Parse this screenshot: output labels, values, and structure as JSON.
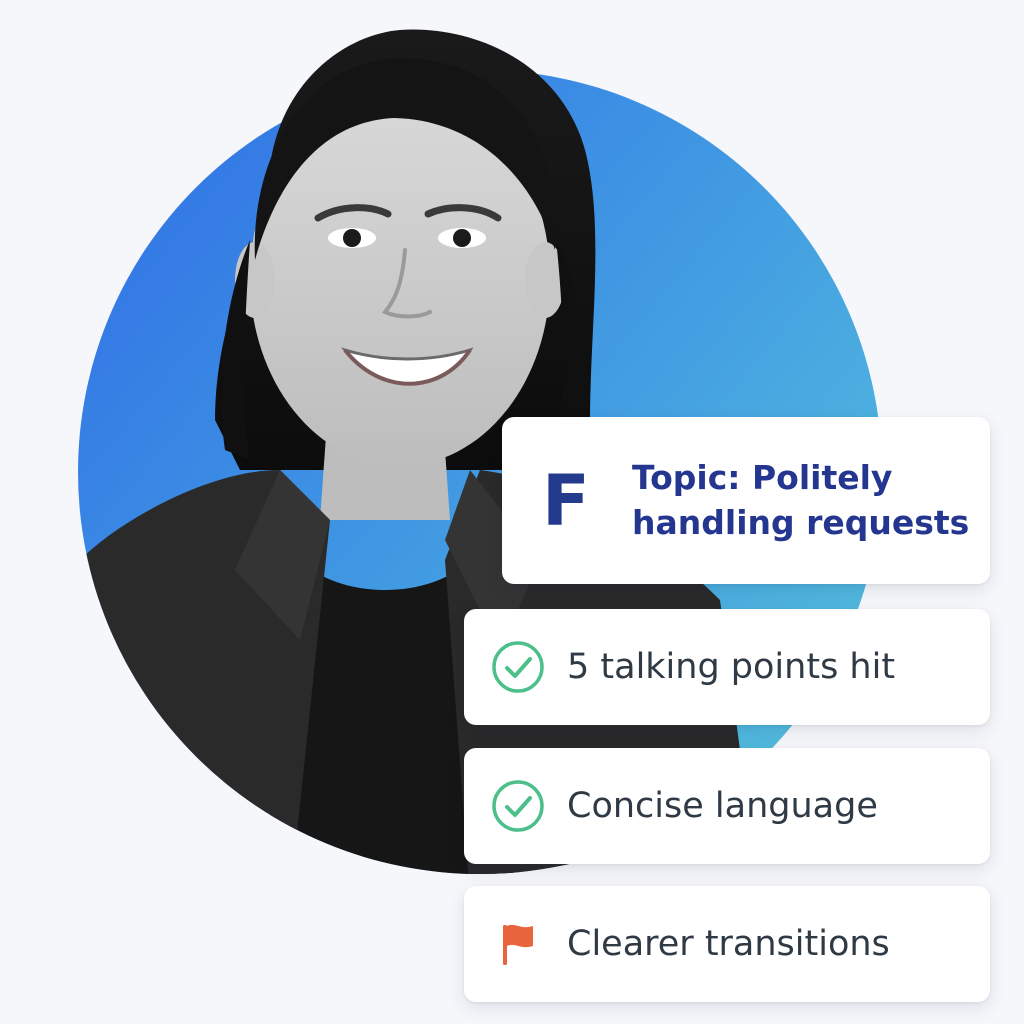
{
  "hero": {
    "photo_subject": "portrait of smiling woman in black blazer",
    "circle_gradient": [
      "#2f6ee6",
      "#58c7dc"
    ]
  },
  "topic_card": {
    "grade": "F",
    "topic_line1": "Topic: Politely",
    "topic_line2": "handling requests",
    "text_color": "#24368f"
  },
  "feedback_items": [
    {
      "icon": "check-circle-icon",
      "label": "5 talking points hit",
      "icon_color": "#4cbf8a"
    },
    {
      "icon": "check-circle-icon",
      "label": "Concise language",
      "icon_color": "#4cbf8a"
    },
    {
      "icon": "flag-icon",
      "label": "Clearer transitions",
      "icon_color": "#e8643c"
    }
  ]
}
